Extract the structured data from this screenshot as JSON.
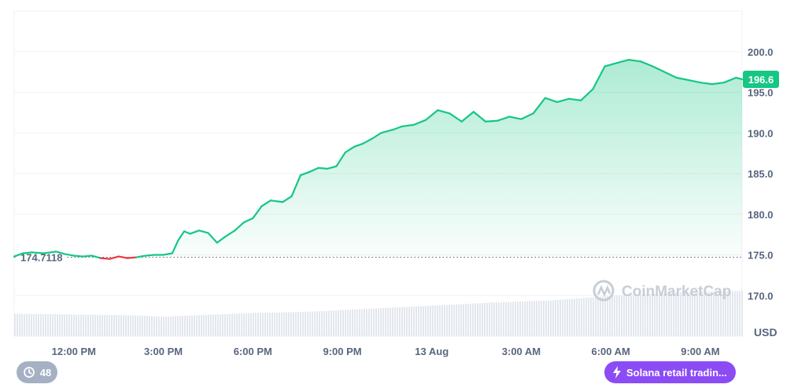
{
  "chart_data": {
    "type": "area",
    "title": "",
    "xlabel": "",
    "ylabel": "",
    "y_unit": "USD",
    "ylim": [
      165,
      205
    ],
    "yticks": [
      "170.0",
      "175.0",
      "180.0",
      "185.0",
      "190.0",
      "195.0",
      "200.0"
    ],
    "xticks": [
      "12:00 PM",
      "3:00 PM",
      "6:00 PM",
      "9:00 PM",
      "13 Aug",
      "3:00 AM",
      "6:00 AM",
      "9:00 AM"
    ],
    "x_start_hours": -2,
    "x_end_hours": 22.4,
    "baseline_value": 174.7118,
    "baseline_label": "174.7118",
    "current_price_label": "196.6",
    "colors": {
      "up": "#16c784",
      "down": "#ea3943",
      "current_badge": "#16c784"
    },
    "watermark": "CoinMarketCap",
    "series": [
      {
        "x": [
          -2.0,
          -1.7,
          -1.4,
          -1.0,
          -0.6,
          -0.3,
          0.0,
          0.3,
          0.6,
          0.9,
          1.2,
          1.5,
          1.8,
          2.1,
          2.4,
          2.7,
          3.0,
          3.3,
          3.5,
          3.7,
          3.9,
          4.2,
          4.5,
          4.8,
          5.1,
          5.4,
          5.7,
          6.0,
          6.3,
          6.6,
          7.0,
          7.3,
          7.6,
          7.9,
          8.2,
          8.5,
          8.8,
          9.1,
          9.4,
          9.7,
          10.0,
          10.3,
          10.7,
          11.0,
          11.4,
          11.8,
          12.2,
          12.6,
          13.0,
          13.4,
          13.8,
          14.2,
          14.6,
          15.0,
          15.4,
          15.8,
          16.2,
          16.6,
          17.0,
          17.4,
          17.8,
          18.2,
          18.6,
          19.0,
          19.4,
          19.8,
          20.2,
          20.6,
          21.0,
          21.4,
          21.8,
          22.2,
          22.4
        ],
        "values": [
          174.8,
          175.2,
          175.3,
          175.2,
          175.4,
          175.1,
          174.9,
          174.8,
          174.9,
          174.6,
          174.5,
          174.8,
          174.6,
          174.7,
          174.9,
          175.0,
          175.0,
          175.2,
          176.8,
          177.9,
          177.6,
          178.0,
          177.7,
          176.5,
          177.3,
          178.0,
          179.0,
          179.5,
          181.0,
          181.7,
          181.5,
          182.2,
          184.8,
          185.2,
          185.7,
          185.6,
          185.9,
          187.6,
          188.3,
          188.7,
          189.3,
          190.0,
          190.4,
          190.8,
          191.0,
          191.6,
          192.8,
          192.4,
          191.4,
          192.6,
          191.4,
          191.5,
          192.0,
          191.7,
          192.4,
          194.3,
          193.8,
          194.2,
          194.0,
          195.4,
          198.2,
          198.6,
          199.0,
          198.8,
          198.2,
          197.5,
          196.8,
          196.5,
          196.2,
          196.0,
          196.2,
          196.8,
          196.6
        ]
      }
    ],
    "volume": {
      "x": [
        -2.0,
        0.0,
        2.0,
        3.0,
        4.0,
        6.0,
        8.0,
        10.0,
        12.0,
        14.0,
        16.0,
        18.0,
        20.0,
        22.4
      ],
      "values": [
        0.3,
        0.29,
        0.28,
        0.26,
        0.28,
        0.31,
        0.33,
        0.37,
        0.41,
        0.45,
        0.48,
        0.54,
        0.58,
        0.61
      ]
    }
  },
  "ui": {
    "events_count": "48",
    "news_label": "Solana retail tradin..."
  }
}
